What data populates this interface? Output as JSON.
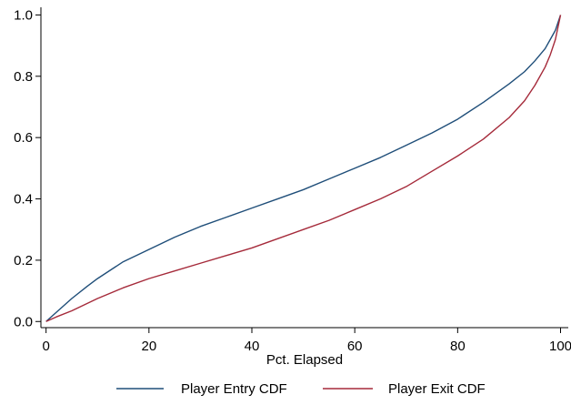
{
  "chart_data": {
    "type": "line",
    "title": "",
    "xlabel": "Pct. Elapsed",
    "ylabel": "",
    "xlim": [
      0,
      100
    ],
    "ylim": [
      0,
      1
    ],
    "xticks": [
      0,
      20,
      40,
      60,
      80,
      100
    ],
    "xtick_labels": [
      "0",
      "20",
      "40",
      "60",
      "80",
      "100"
    ],
    "yticks": [
      0,
      0.2,
      0.4,
      0.6,
      0.8,
      1.0
    ],
    "ytick_labels": [
      "0.0",
      "0.2",
      "0.4",
      "0.6",
      "0.8",
      "1.0"
    ],
    "grid": false,
    "legend_position": "bottom",
    "series": [
      {
        "name": "Player Entry CDF",
        "color": "#1f4e79",
        "x": [
          0,
          2,
          5,
          8,
          10,
          15,
          20,
          25,
          30,
          35,
          40,
          45,
          50,
          55,
          60,
          65,
          70,
          75,
          80,
          85,
          90,
          93,
          95,
          97,
          98,
          99,
          100
        ],
        "y": [
          0.0,
          0.03,
          0.075,
          0.115,
          0.14,
          0.195,
          0.235,
          0.275,
          0.31,
          0.34,
          0.37,
          0.4,
          0.43,
          0.465,
          0.5,
          0.535,
          0.575,
          0.615,
          0.66,
          0.715,
          0.775,
          0.815,
          0.85,
          0.89,
          0.92,
          0.95,
          1.0
        ]
      },
      {
        "name": "Player Exit CDF",
        "color": "#a52a3a",
        "x": [
          0,
          2,
          5,
          10,
          15,
          20,
          25,
          30,
          35,
          40,
          45,
          50,
          55,
          60,
          65,
          70,
          75,
          80,
          85,
          90,
          93,
          95,
          97,
          98,
          99,
          100
        ],
        "y": [
          0.0,
          0.015,
          0.035,
          0.075,
          0.11,
          0.14,
          0.165,
          0.19,
          0.215,
          0.24,
          0.27,
          0.3,
          0.33,
          0.365,
          0.4,
          0.44,
          0.49,
          0.54,
          0.595,
          0.665,
          0.72,
          0.77,
          0.83,
          0.87,
          0.92,
          1.0
        ]
      }
    ]
  }
}
